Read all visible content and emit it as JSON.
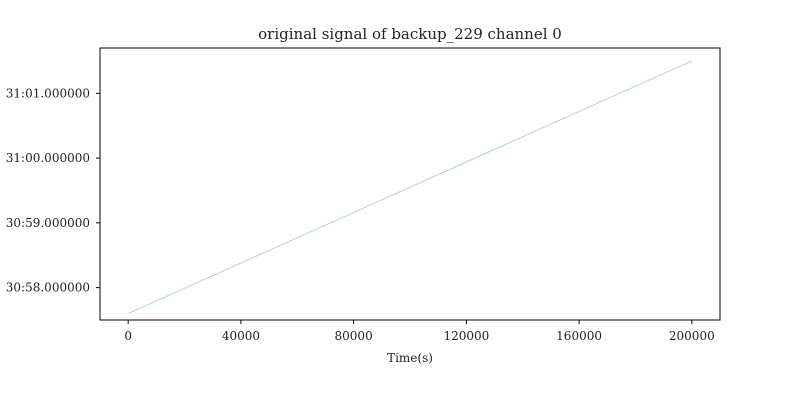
{
  "chart_data": {
    "type": "line",
    "title": "original signal of backup_229 channel 0",
    "xlabel": "Time(s)",
    "ylabel": "",
    "xlim": [
      -10000,
      210000
    ],
    "ylim": [
      "30:57.500000",
      "31:01.700000"
    ],
    "x_ticks": [
      {
        "value": 0,
        "label": "0"
      },
      {
        "value": 40000,
        "label": "40000"
      },
      {
        "value": 80000,
        "label": "80000"
      },
      {
        "value": 120000,
        "label": "120000"
      },
      {
        "value": 160000,
        "label": "160000"
      },
      {
        "value": 200000,
        "label": "200000"
      }
    ],
    "y_ticks": [
      {
        "value": "31:01.000000",
        "label": "31:01.000000"
      },
      {
        "value": "31:00.000000",
        "label": "31:00.000000"
      },
      {
        "value": "30:59.000000",
        "label": "30:59.000000"
      },
      {
        "value": "30:58.000000",
        "label": "30:58.000000"
      }
    ],
    "grid": false,
    "legend": "none",
    "series": [
      {
        "color": "#9ec9e2",
        "x": [
          0,
          200000
        ],
        "y": [
          "30:57.600000",
          "31:01.500000"
        ]
      }
    ]
  }
}
